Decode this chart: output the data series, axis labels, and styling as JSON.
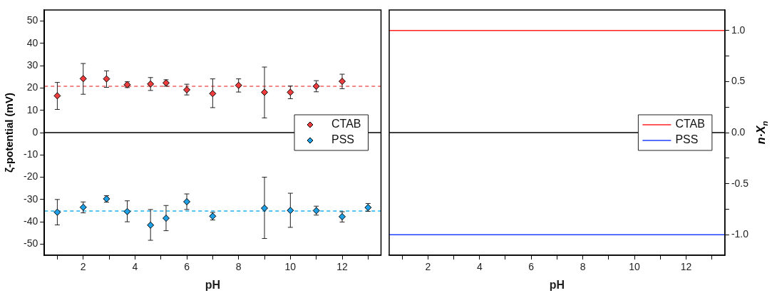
{
  "chart_data": [
    {
      "type": "scatter",
      "xlabel": "pH",
      "ylabel": "ζ-potential (mV)",
      "xlim": [
        0.5,
        13.5
      ],
      "ylim": [
        -55,
        55
      ],
      "xticks": [
        {
          "value": 1,
          "label": null
        },
        2,
        {
          "value": 3,
          "label": null
        },
        4,
        {
          "value": 5,
          "label": null
        },
        6,
        {
          "value": 7,
          "label": null
        },
        8,
        {
          "value": 9,
          "label": null
        },
        10,
        {
          "value": 11,
          "label": null
        },
        12,
        {
          "value": 13,
          "label": null
        }
      ],
      "yticks": [
        -50,
        -40,
        -30,
        -20,
        -10,
        0,
        10,
        20,
        30,
        40,
        50
      ],
      "marker": "diamond",
      "legend": "right",
      "grid": false,
      "series": [
        {
          "name": "CTAB",
          "color": "#f03c3c",
          "x": [
            1,
            2,
            2.9,
            3.7,
            4.6,
            5.2,
            6,
            7,
            8,
            9,
            10,
            11,
            12
          ],
          "values": [
            16.5,
            24.2,
            24.1,
            21.5,
            21.8,
            22.3,
            19.2,
            17.5,
            21.2,
            18.1,
            18.1,
            20.8,
            23.0
          ],
          "errors": [
            [
              10.4,
              22.5
            ],
            [
              17.2,
              31.0
            ],
            [
              20.3,
              27.7
            ],
            [
              20.2,
              22.8
            ],
            [
              18.9,
              24.7
            ],
            [
              20.8,
              23.7
            ],
            [
              16.9,
              21.7
            ],
            [
              11.2,
              24.1
            ],
            [
              18.2,
              24.1
            ],
            [
              6.6,
              29.4
            ],
            [
              15.2,
              20.9
            ],
            [
              18.3,
              23.3
            ],
            [
              19.7,
              26.2
            ]
          ]
        },
        {
          "name": "PSS",
          "color": "#1ea0e6",
          "x": [
            1,
            2,
            2.9,
            3.7,
            4.6,
            5.2,
            6,
            7,
            9,
            10,
            11,
            12,
            13
          ],
          "values": [
            -35.7,
            -33.5,
            -29.7,
            -35.4,
            -41.5,
            -38.4,
            -31.0,
            -37.5,
            -33.9,
            -34.9,
            -35.0,
            -37.7,
            -33.6
          ],
          "errors": [
            [
              -41.4,
              -30.0
            ],
            [
              -36.0,
              -31.1
            ],
            [
              -31.2,
              -28.3
            ],
            [
              -40.0,
              -30.6
            ],
            [
              -48.3,
              -34.5
            ],
            [
              -44.0,
              -32.7
            ],
            [
              -34.5,
              -27.5
            ],
            [
              -39.2,
              -35.8
            ],
            [
              -47.5,
              -20.0
            ],
            [
              -42.5,
              -27.2
            ],
            [
              -37.0,
              -33.0
            ],
            [
              -40.1,
              -35.5
            ],
            [
              -35.3,
              -31.8
            ]
          ]
        }
      ],
      "ref_lines": [
        {
          "axis": "y",
          "value": 0,
          "color": "#000000",
          "line_style": "solid"
        },
        {
          "axis": "y",
          "value": 20.8,
          "color": "#f06060",
          "line_style": "dashed"
        },
        {
          "axis": "y",
          "value": -35.2,
          "color": "#20b0f0",
          "line_style": "dashed"
        }
      ]
    },
    {
      "type": "line",
      "xlabel": "pH",
      "y2label": "n·X$_{n}$",
      "xlim": [
        0.5,
        13.5
      ],
      "y2lim": [
        -1.2,
        1.2
      ],
      "xticks": [
        {
          "value": 1,
          "label": null
        },
        2,
        {
          "value": 3,
          "label": null
        },
        4,
        {
          "value": 5,
          "label": null
        },
        6,
        {
          "value": 7,
          "label": null
        },
        8,
        {
          "value": 9,
          "label": null
        },
        10,
        {
          "value": 11,
          "label": null
        },
        12,
        {
          "value": 13,
          "label": null
        }
      ],
      "y2ticks": [
        {
          "value": -1,
          "label": "-1.0"
        },
        {
          "value": -0.75,
          "label": null
        },
        {
          "value": -0.5,
          "label": "-0.5"
        },
        {
          "value": -0.25,
          "label": null
        },
        {
          "value": 0,
          "label": "0.0"
        },
        {
          "value": 0.25,
          "label": null
        },
        {
          "value": 0.5,
          "label": "0.5"
        },
        {
          "value": 0.75,
          "label": null
        },
        {
          "value": 1,
          "label": "1.0"
        }
      ],
      "marker": "none",
      "line_style": "solid",
      "legend": "right",
      "grid": false,
      "series": [
        {
          "name": "CTAB",
          "color": "#ff2020",
          "axis": "y2",
          "x": [
            0.5,
            13.5
          ],
          "values": [
            1,
            1
          ]
        },
        {
          "name": "PSS",
          "color": "#2040ff",
          "axis": "y2",
          "x": [
            0.5,
            13.5
          ],
          "values": [
            -1,
            -1
          ]
        }
      ],
      "ref_lines": [
        {
          "axis": "y2",
          "value": 0,
          "color": "#000000",
          "line_style": "solid"
        }
      ]
    }
  ]
}
